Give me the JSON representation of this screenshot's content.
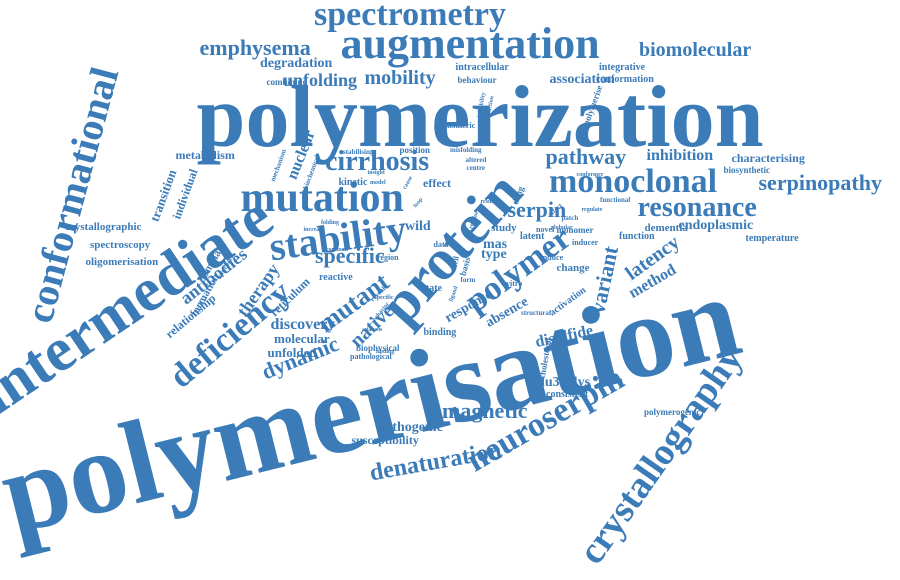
{
  "color": "#3b7bb8",
  "words": [
    "polymerisation",
    "polymerization",
    "intermediate",
    "protein",
    "conformational",
    "crystallography",
    "augmentation",
    "mutation",
    "stability",
    "neuroserpin",
    "deficiency",
    "monoclonal",
    "spectrometry",
    "polymer",
    "cirrhosis",
    "resonance",
    "emphysema",
    "serpinopathy",
    "denaturation",
    "mutant",
    "magnetic",
    "specific",
    "dynamic",
    "variant",
    "pathway",
    "serpin",
    "biomolecular",
    "native",
    "mobility",
    "latency",
    "unfolding",
    "antibodies",
    "nuclear",
    "inhibition",
    "therapy",
    "method",
    "discovery",
    "glu342lys",
    "degradation",
    "disulfide",
    "association",
    "endoplasmic",
    "metabolism",
    "transition",
    "individual",
    "crystallographic",
    "spectroscopy",
    "oligomerisation",
    "relationship",
    "formation",
    "dominant",
    "pathogenic",
    "susceptibility",
    "molecular",
    "unfolded",
    "reticulum",
    "reactive",
    "characterising",
    "temperature",
    "dementia",
    "function",
    "intracellular",
    "integrative",
    "conformation",
    "behaviour",
    "combining",
    "response",
    "absence",
    "type",
    "mas",
    "study",
    "wild",
    "effect",
    "kinetic",
    "position",
    "altered",
    "centre",
    "misfolding",
    "cholesterol",
    "consistent",
    "polymerogenic",
    "latent",
    "change",
    "activation",
    "monomer",
    "inducer",
    "biosynthetic",
    "conformer",
    "regulate",
    "novel",
    "functional",
    "polymerise",
    "instability",
    "interaction",
    "monomeric",
    "biophysical",
    "pathological",
    "binding",
    "mechanism",
    "biochemical",
    "stabilising",
    "approach",
    "structural",
    "reveal",
    "data",
    "state",
    "region",
    "vitro",
    "cell",
    "drug",
    "induce",
    "basis",
    "model",
    "loop",
    "insight",
    "form",
    "ligand",
    "result",
    "behavior",
    "common",
    "folding",
    "increase",
    "specific",
    "analysis",
    "cause",
    "residue",
    "finding",
    "patch",
    "affect",
    "globular"
  ]
}
